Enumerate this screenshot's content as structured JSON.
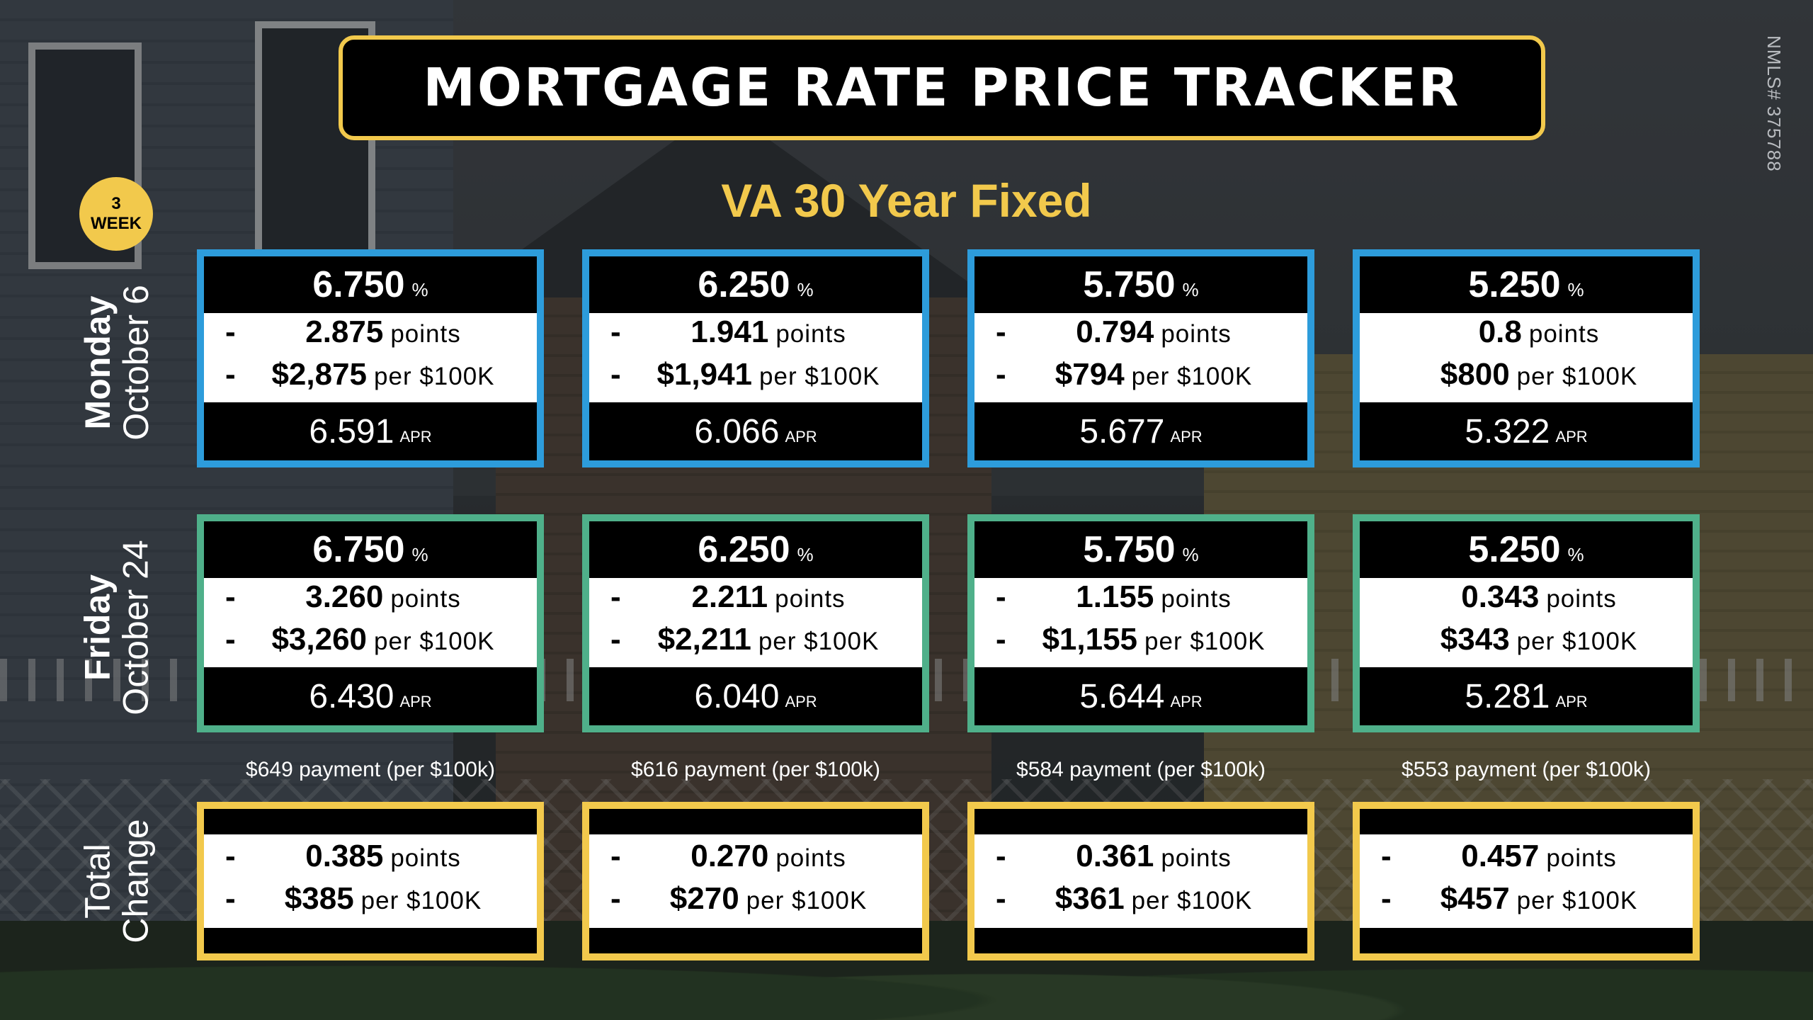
{
  "header": {
    "title": "MORTGAGE RATE PRICE TRACKER",
    "subtitle": "VA 30 Year Fixed",
    "nmls": "NMLS# 375788"
  },
  "badge": {
    "line1": "3",
    "line2": "WEEK"
  },
  "rows": {
    "monday": {
      "line1": "Monday",
      "line2": "October 6"
    },
    "friday": {
      "line1": "Friday",
      "line2": "October 24"
    },
    "total": {
      "line1": "Total",
      "line2": "Change"
    }
  },
  "labels": {
    "pct": "%",
    "points": "points",
    "per100k": "per $100K",
    "apr": "APR"
  },
  "monday_cards": [
    {
      "rate": "6.750",
      "sign1": "-",
      "points": "2.875",
      "sign2": "-",
      "cost": "$2,875",
      "apr": "6.591"
    },
    {
      "rate": "6.250",
      "sign1": "-",
      "points": "1.941",
      "sign2": "-",
      "cost": "$1,941",
      "apr": "6.066"
    },
    {
      "rate": "5.750",
      "sign1": "-",
      "points": "0.794",
      "sign2": "-",
      "cost": "$794",
      "apr": "5.677"
    },
    {
      "rate": "5.250",
      "sign1": "",
      "points": "0.8",
      "sign2": "",
      "cost": "$800",
      "apr": "5.322"
    }
  ],
  "friday_cards": [
    {
      "rate": "6.750",
      "sign1": "-",
      "points": "3.260",
      "sign2": "-",
      "cost": "$3,260",
      "apr": "6.430",
      "payment": "$649 payment (per $100k)"
    },
    {
      "rate": "6.250",
      "sign1": "-",
      "points": "2.211",
      "sign2": "-",
      "cost": "$2,211",
      "apr": "6.040",
      "payment": "$616 payment (per $100k)"
    },
    {
      "rate": "5.750",
      "sign1": "-",
      "points": "1.155",
      "sign2": "-",
      "cost": "$1,155",
      "apr": "5.644",
      "payment": "$584 payment (per $100k)"
    },
    {
      "rate": "5.250",
      "sign1": "",
      "points": "0.343",
      "sign2": "",
      "cost": "$343",
      "apr": "5.281",
      "payment": "$553 payment (per $100k)"
    }
  ],
  "change_cards": [
    {
      "sign1": "-",
      "points": "0.385",
      "sign2": "-",
      "cost": "$385"
    },
    {
      "sign1": "-",
      "points": "0.270",
      "sign2": "-",
      "cost": "$270"
    },
    {
      "sign1": "-",
      "points": "0.361",
      "sign2": "-",
      "cost": "$361"
    },
    {
      "sign1": "-",
      "points": "0.457",
      "sign2": "-",
      "cost": "$457"
    }
  ],
  "colors": {
    "monday_border": "#2d9cdb",
    "friday_border": "#4fb08a",
    "change_border": "#f2c94c",
    "accent": "#f2c94c"
  }
}
